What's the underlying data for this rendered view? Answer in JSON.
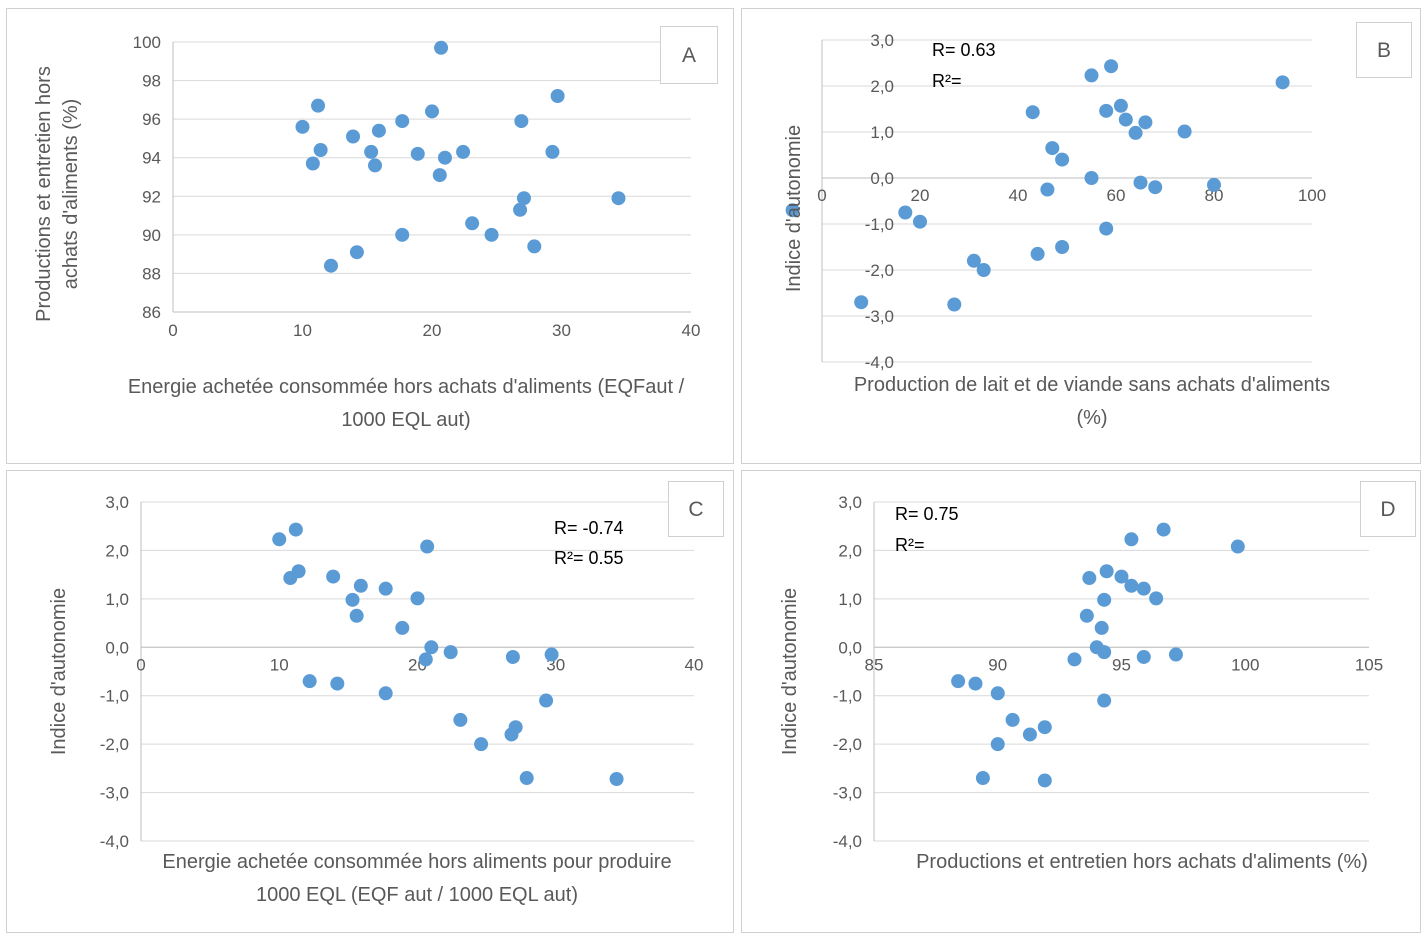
{
  "chart_data": [
    {
      "id": "A",
      "type": "scatter",
      "panel_label": "A",
      "xlabel": "Energie achetée consommée hors achats d'aliments (EQFaut / 1000 EQL aut)",
      "ylabel": "Productions et entretien hors achats d'aliments (%)",
      "xlim": [
        0,
        40
      ],
      "ylim": [
        86,
        100
      ],
      "xticks": [
        0,
        10,
        20,
        30,
        40
      ],
      "yticks": [
        86,
        88,
        90,
        92,
        94,
        96,
        98,
        100
      ],
      "tick_decimals": 0,
      "grid": true,
      "marker_color": "#5b9bd5",
      "annotations": [],
      "points": [
        [
          10.0,
          95.6
        ],
        [
          11.2,
          96.7
        ],
        [
          11.4,
          94.4
        ],
        [
          10.8,
          93.7
        ],
        [
          12.2,
          88.4
        ],
        [
          13.9,
          95.1
        ],
        [
          14.2,
          89.1
        ],
        [
          15.3,
          94.3
        ],
        [
          15.6,
          93.6
        ],
        [
          15.9,
          95.4
        ],
        [
          17.7,
          95.9
        ],
        [
          17.7,
          90.0
        ],
        [
          18.9,
          94.2
        ],
        [
          20.0,
          96.4
        ],
        [
          20.6,
          93.1
        ],
        [
          20.7,
          99.7
        ],
        [
          21.0,
          94.0
        ],
        [
          22.4,
          94.3
        ],
        [
          23.1,
          90.6
        ],
        [
          24.6,
          90.0
        ],
        [
          26.8,
          91.3
        ],
        [
          26.9,
          95.9
        ],
        [
          27.1,
          91.9
        ],
        [
          27.9,
          89.4
        ],
        [
          29.3,
          94.3
        ],
        [
          29.7,
          97.2
        ],
        [
          34.4,
          91.9
        ]
      ]
    },
    {
      "id": "B",
      "type": "scatter",
      "panel_label": "B",
      "xlabel": "Production de lait et de viande sans achats d'aliments (%)",
      "ylabel": "Indice d'autonomie",
      "xlim": [
        -20,
        100
      ],
      "ylim": [
        -4,
        3
      ],
      "xticks": [
        -20,
        0,
        20,
        40,
        60,
        80,
        100
      ],
      "yticks": [
        -4,
        -3,
        -2,
        -1,
        0,
        1,
        2,
        3
      ],
      "tick_decimals": 1,
      "grid": true,
      "marker_color": "#5b9bd5",
      "annotations": [
        "R= 0.63",
        "R²="
      ],
      "points": [
        [
          -6,
          -0.7
        ],
        [
          8,
          -2.7
        ],
        [
          17,
          -0.75
        ],
        [
          20,
          -0.95
        ],
        [
          27,
          -2.75
        ],
        [
          31,
          -1.8
        ],
        [
          33,
          -2.0
        ],
        [
          43,
          1.43
        ],
        [
          44,
          -1.65
        ],
        [
          46,
          -0.25
        ],
        [
          47,
          0.65
        ],
        [
          49,
          0.4
        ],
        [
          49,
          -1.5
        ],
        [
          55,
          0.0
        ],
        [
          55,
          2.23
        ],
        [
          58,
          1.46
        ],
        [
          58,
          -1.1
        ],
        [
          59,
          2.43
        ],
        [
          61,
          1.57
        ],
        [
          62,
          1.27
        ],
        [
          64,
          0.98
        ],
        [
          65,
          -0.1
        ],
        [
          66,
          1.21
        ],
        [
          68,
          -0.2
        ],
        [
          74,
          1.01
        ],
        [
          80,
          -0.15
        ],
        [
          94,
          2.08
        ]
      ]
    },
    {
      "id": "C",
      "type": "scatter",
      "panel_label": "C",
      "xlabel": "Energie achetée consommée hors aliments pour produire 1000 EQL (EQF aut / 1000 EQL aut)",
      "ylabel": "Indice d'autonomie",
      "xlim": [
        0,
        40
      ],
      "ylim": [
        -4,
        3
      ],
      "xticks": [
        0,
        10,
        20,
        30,
        40
      ],
      "yticks": [
        -4,
        -3,
        -2,
        -1,
        0,
        1,
        2,
        3
      ],
      "tick_decimals": 1,
      "grid": true,
      "marker_color": "#5b9bd5",
      "annotations": [
        "R= -0.74",
        "R²= 0.55"
      ],
      "points": [
        [
          10.0,
          2.23
        ],
        [
          11.2,
          2.43
        ],
        [
          10.8,
          1.43
        ],
        [
          11.4,
          1.57
        ],
        [
          12.2,
          -0.7
        ],
        [
          13.9,
          1.46
        ],
        [
          14.2,
          -0.75
        ],
        [
          15.3,
          0.98
        ],
        [
          15.6,
          0.65
        ],
        [
          15.9,
          1.27
        ],
        [
          17.7,
          1.21
        ],
        [
          17.7,
          -0.95
        ],
        [
          18.9,
          0.4
        ],
        [
          20.0,
          1.01
        ],
        [
          20.6,
          -0.25
        ],
        [
          20.7,
          2.08
        ],
        [
          21.0,
          0.0
        ],
        [
          22.4,
          -0.1
        ],
        [
          23.1,
          -1.5
        ],
        [
          24.6,
          -2.0
        ],
        [
          26.8,
          -1.8
        ],
        [
          26.9,
          -0.2
        ],
        [
          27.1,
          -1.65
        ],
        [
          27.9,
          -2.7
        ],
        [
          29.3,
          -1.1
        ],
        [
          29.7,
          -0.15
        ],
        [
          34.4,
          -2.72
        ]
      ]
    },
    {
      "id": "D",
      "type": "scatter",
      "panel_label": "D",
      "xlabel": "Productions et entretien hors achats d'aliments (%)",
      "ylabel": "Indice d'autonomie",
      "xlim": [
        85,
        105
      ],
      "ylim": [
        -4,
        3
      ],
      "xticks": [
        85,
        90,
        95,
        100,
        105
      ],
      "yticks": [
        -4,
        -3,
        -2,
        -1,
        0,
        1,
        2,
        3
      ],
      "tick_decimals": 1,
      "grid": true,
      "marker_color": "#5b9bd5",
      "annotations": [
        "R= 0.75",
        "R²="
      ],
      "points": [
        [
          88.4,
          -0.7
        ],
        [
          89.1,
          -0.75
        ],
        [
          89.4,
          -2.7
        ],
        [
          90.0,
          -2.0
        ],
        [
          90.0,
          -0.95
        ],
        [
          90.6,
          -1.5
        ],
        [
          91.3,
          -1.8
        ],
        [
          91.9,
          -1.65
        ],
        [
          91.9,
          -2.75
        ],
        [
          93.1,
          -0.25
        ],
        [
          93.6,
          0.65
        ],
        [
          93.7,
          1.43
        ],
        [
          94.0,
          0.0
        ],
        [
          94.2,
          0.4
        ],
        [
          94.3,
          0.98
        ],
        [
          94.3,
          -0.1
        ],
        [
          94.3,
          -1.1
        ],
        [
          94.4,
          1.57
        ],
        [
          95.0,
          1.46
        ],
        [
          95.4,
          2.23
        ],
        [
          95.4,
          1.27
        ],
        [
          95.9,
          1.21
        ],
        [
          95.9,
          -0.2
        ],
        [
          96.4,
          1.01
        ],
        [
          96.7,
          2.43
        ],
        [
          97.2,
          -0.15
        ],
        [
          99.7,
          2.08
        ]
      ]
    }
  ]
}
